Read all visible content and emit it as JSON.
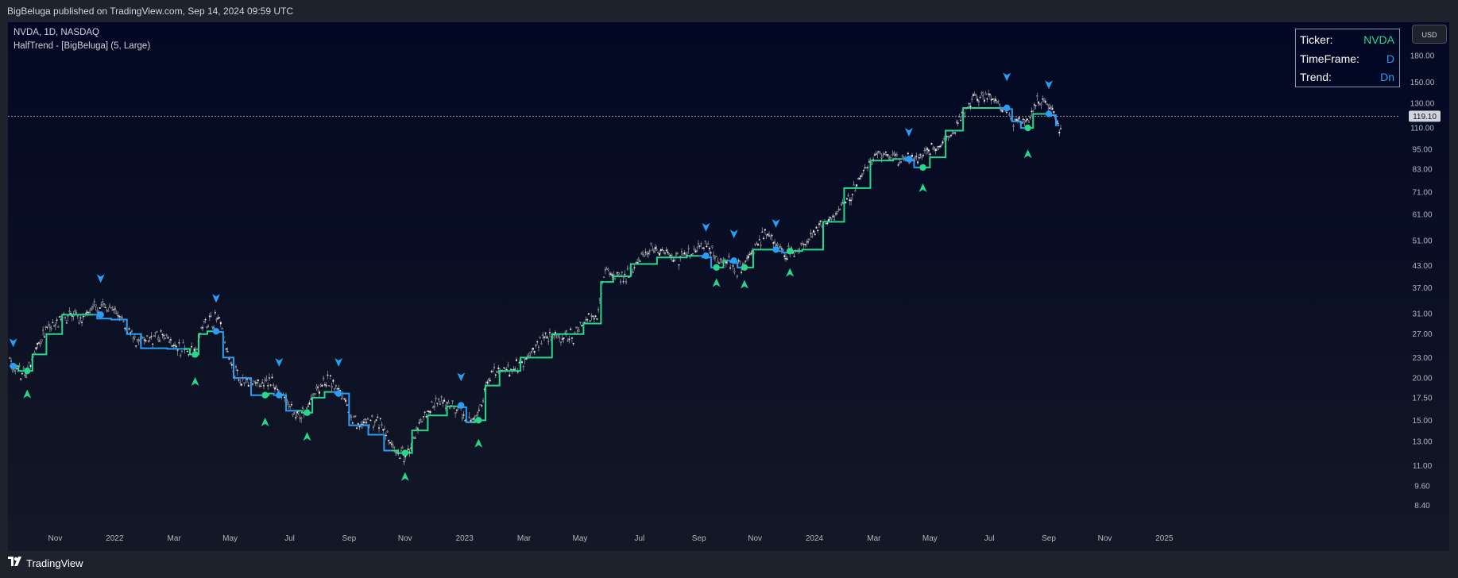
{
  "header": {
    "published_line": "BigBeluga published on TradingView.com, Sep 14, 2024 09:59 UTC"
  },
  "legend": {
    "symbol_line": "NVDA, 1D, NASDAQ",
    "indicator_line": "HalfTrend - [BigBeluga] (5, Large)"
  },
  "info_table": {
    "rows": [
      {
        "label": "Ticker:",
        "value": "NVDA",
        "color": "#26d88a"
      },
      {
        "label": "TimeFrame:",
        "value": "D",
        "color": "#2a9df4"
      },
      {
        "label": "Trend:",
        "value": "Dn",
        "color": "#2a9df4"
      }
    ]
  },
  "currency": "USD",
  "footer": {
    "brand": "TradingView"
  },
  "colors": {
    "up": "#26d88a",
    "down": "#2a9df4",
    "candle": "#c8c8c8",
    "axis_text": "#b2b5be",
    "price_line": "#9598a1"
  },
  "chart_data": {
    "type": "line",
    "scale": "log",
    "title": "NVDA, 1D, NASDAQ",
    "indicator": "HalfTrend - [BigBeluga] (5, Large)",
    "x_range": [
      "2021-10",
      "2025-02"
    ],
    "ylim": [
      7.6,
      205
    ],
    "x_ticks": [
      {
        "label": "Nov",
        "t": 2021.83
      },
      {
        "label": "2022",
        "t": 2022.0
      },
      {
        "label": "Mar",
        "t": 2022.17
      },
      {
        "label": "May",
        "t": 2022.33
      },
      {
        "label": "Jul",
        "t": 2022.5
      },
      {
        "label": "Sep",
        "t": 2022.67
      },
      {
        "label": "Nov",
        "t": 2022.83
      },
      {
        "label": "2023",
        "t": 2023.0
      },
      {
        "label": "Mar",
        "t": 2023.17
      },
      {
        "label": "May",
        "t": 2023.33
      },
      {
        "label": "Jul",
        "t": 2023.5
      },
      {
        "label": "Sep",
        "t": 2023.67
      },
      {
        "label": "Nov",
        "t": 2023.83
      },
      {
        "label": "2024",
        "t": 2024.0
      },
      {
        "label": "Mar",
        "t": 2024.17
      },
      {
        "label": "May",
        "t": 2024.33
      },
      {
        "label": "Jul",
        "t": 2024.5
      },
      {
        "label": "Sep",
        "t": 2024.67
      },
      {
        "label": "Nov",
        "t": 2024.83
      },
      {
        "label": "2025",
        "t": 2025.0
      }
    ],
    "y_ticks": [
      "180.00",
      "150.00",
      "130.00",
      "110.00",
      "95.00",
      "83.00",
      "71.00",
      "61.00",
      "51.00",
      "43.00",
      "37.00",
      "31.00",
      "27.00",
      "23.00",
      "20.00",
      "17.50",
      "15.00",
      "13.00",
      "11.00",
      "9.60",
      "8.40"
    ],
    "last_price": 119.1,
    "last_price_label": "119.10",
    "halftrend": [
      {
        "t": 2021.7,
        "v": 21.7,
        "trend": "down"
      },
      {
        "t": 2021.75,
        "v": 21.0,
        "trend": "up"
      },
      {
        "t": 2021.78,
        "v": 23.5,
        "trend": "up"
      },
      {
        "t": 2021.83,
        "v": 27.0,
        "trend": "up"
      },
      {
        "t": 2021.87,
        "v": 30.8,
        "trend": "up"
      },
      {
        "t": 2021.94,
        "v": 30.8,
        "trend": "up"
      },
      {
        "t": 2021.96,
        "v": 30.0,
        "trend": "down"
      },
      {
        "t": 2022.02,
        "v": 29.8,
        "trend": "down"
      },
      {
        "t": 2022.05,
        "v": 27.0,
        "trend": "down"
      },
      {
        "t": 2022.1,
        "v": 24.5,
        "trend": "down"
      },
      {
        "t": 2022.2,
        "v": 24.4,
        "trend": "down"
      },
      {
        "t": 2022.23,
        "v": 23.5,
        "trend": "up"
      },
      {
        "t": 2022.25,
        "v": 27.0,
        "trend": "up"
      },
      {
        "t": 2022.28,
        "v": 27.5,
        "trend": "up"
      },
      {
        "t": 2022.3,
        "v": 27.4,
        "trend": "down"
      },
      {
        "t": 2022.32,
        "v": 23.0,
        "trend": "down"
      },
      {
        "t": 2022.36,
        "v": 20.0,
        "trend": "down"
      },
      {
        "t": 2022.42,
        "v": 17.8,
        "trend": "down"
      },
      {
        "t": 2022.43,
        "v": 17.8,
        "trend": "up"
      },
      {
        "t": 2022.45,
        "v": 18.0,
        "trend": "up"
      },
      {
        "t": 2022.46,
        "v": 17.8,
        "trend": "down"
      },
      {
        "t": 2022.52,
        "v": 16.0,
        "trend": "down"
      },
      {
        "t": 2022.55,
        "v": 15.8,
        "trend": "up"
      },
      {
        "t": 2022.58,
        "v": 17.5,
        "trend": "up"
      },
      {
        "t": 2022.62,
        "v": 18.2,
        "trend": "up"
      },
      {
        "t": 2022.64,
        "v": 18.0,
        "trend": "down"
      },
      {
        "t": 2022.7,
        "v": 14.5,
        "trend": "down"
      },
      {
        "t": 2022.75,
        "v": 13.6,
        "trend": "down"
      },
      {
        "t": 2022.79,
        "v": 12.2,
        "trend": "down"
      },
      {
        "t": 2022.83,
        "v": 12.0,
        "trend": "up"
      },
      {
        "t": 2022.87,
        "v": 14.0,
        "trend": "up"
      },
      {
        "t": 2022.92,
        "v": 15.5,
        "trend": "up"
      },
      {
        "t": 2022.98,
        "v": 16.5,
        "trend": "up"
      },
      {
        "t": 2022.99,
        "v": 16.4,
        "trend": "down"
      },
      {
        "t": 2023.02,
        "v": 14.8,
        "trend": "down"
      },
      {
        "t": 2023.04,
        "v": 15.0,
        "trend": "up"
      },
      {
        "t": 2023.08,
        "v": 19.0,
        "trend": "up"
      },
      {
        "t": 2023.12,
        "v": 21.0,
        "trend": "up"
      },
      {
        "t": 2023.2,
        "v": 23.0,
        "trend": "up"
      },
      {
        "t": 2023.3,
        "v": 27.0,
        "trend": "up"
      },
      {
        "t": 2023.38,
        "v": 29.0,
        "trend": "up"
      },
      {
        "t": 2023.4,
        "v": 38.5,
        "trend": "up"
      },
      {
        "t": 2023.45,
        "v": 40.0,
        "trend": "up"
      },
      {
        "t": 2023.5,
        "v": 43.5,
        "trend": "up"
      },
      {
        "t": 2023.6,
        "v": 45.5,
        "trend": "up"
      },
      {
        "t": 2023.67,
        "v": 46.0,
        "trend": "up"
      },
      {
        "t": 2023.69,
        "v": 45.5,
        "trend": "down"
      },
      {
        "t": 2023.72,
        "v": 42.5,
        "trend": "down"
      },
      {
        "t": 2023.73,
        "v": 42.5,
        "trend": "up"
      },
      {
        "t": 2023.75,
        "v": 44.5,
        "trend": "up"
      },
      {
        "t": 2023.77,
        "v": 44.0,
        "trend": "down"
      },
      {
        "t": 2023.79,
        "v": 42.5,
        "trend": "down"
      },
      {
        "t": 2023.8,
        "v": 42.5,
        "trend": "up"
      },
      {
        "t": 2023.85,
        "v": 48.0,
        "trend": "up"
      },
      {
        "t": 2023.89,
        "v": 48.0,
        "trend": "up"
      },
      {
        "t": 2023.9,
        "v": 47.5,
        "trend": "down"
      },
      {
        "t": 2023.92,
        "v": 47.0,
        "trend": "down"
      },
      {
        "t": 2023.93,
        "v": 47.5,
        "trend": "up"
      },
      {
        "t": 2024.0,
        "v": 48.0,
        "trend": "up"
      },
      {
        "t": 2024.05,
        "v": 58.0,
        "trend": "up"
      },
      {
        "t": 2024.12,
        "v": 73.0,
        "trend": "up"
      },
      {
        "t": 2024.2,
        "v": 88.0,
        "trend": "up"
      },
      {
        "t": 2024.25,
        "v": 89.0,
        "trend": "up"
      },
      {
        "t": 2024.27,
        "v": 88.0,
        "trend": "down"
      },
      {
        "t": 2024.3,
        "v": 84.0,
        "trend": "down"
      },
      {
        "t": 2024.31,
        "v": 84.0,
        "trend": "up"
      },
      {
        "t": 2024.35,
        "v": 90.0,
        "trend": "up"
      },
      {
        "t": 2024.4,
        "v": 108.0,
        "trend": "up"
      },
      {
        "t": 2024.45,
        "v": 126.0,
        "trend": "up"
      },
      {
        "t": 2024.53,
        "v": 126.0,
        "trend": "up"
      },
      {
        "t": 2024.55,
        "v": 125.0,
        "trend": "down"
      },
      {
        "t": 2024.58,
        "v": 115.0,
        "trend": "down"
      },
      {
        "t": 2024.6,
        "v": 110.0,
        "trend": "down"
      },
      {
        "t": 2024.61,
        "v": 110.0,
        "trend": "up"
      },
      {
        "t": 2024.64,
        "v": 121.0,
        "trend": "up"
      },
      {
        "t": 2024.67,
        "v": 121.0,
        "trend": "up"
      },
      {
        "t": 2024.68,
        "v": 120.0,
        "trend": "down"
      },
      {
        "t": 2024.7,
        "v": 112.0,
        "trend": "down"
      }
    ],
    "markers": [
      {
        "t": 2021.71,
        "v": 21.7,
        "dir": "down"
      },
      {
        "t": 2021.75,
        "v": 21.0,
        "dir": "up"
      },
      {
        "t": 2021.96,
        "v": 30.8,
        "dir": "down"
      },
      {
        "t": 2022.23,
        "v": 23.5,
        "dir": "up"
      },
      {
        "t": 2022.29,
        "v": 27.5,
        "dir": "down"
      },
      {
        "t": 2022.43,
        "v": 17.8,
        "dir": "up"
      },
      {
        "t": 2022.47,
        "v": 17.8,
        "dir": "down"
      },
      {
        "t": 2022.55,
        "v": 15.8,
        "dir": "up"
      },
      {
        "t": 2022.64,
        "v": 18.0,
        "dir": "down"
      },
      {
        "t": 2022.83,
        "v": 12.0,
        "dir": "up"
      },
      {
        "t": 2022.99,
        "v": 16.6,
        "dir": "down"
      },
      {
        "t": 2023.04,
        "v": 15.0,
        "dir": "up"
      },
      {
        "t": 2023.69,
        "v": 46.0,
        "dir": "down"
      },
      {
        "t": 2023.72,
        "v": 42.5,
        "dir": "up"
      },
      {
        "t": 2023.77,
        "v": 44.5,
        "dir": "down"
      },
      {
        "t": 2023.8,
        "v": 42.5,
        "dir": "up"
      },
      {
        "t": 2023.89,
        "v": 48.0,
        "dir": "down"
      },
      {
        "t": 2023.93,
        "v": 47.5,
        "dir": "up"
      },
      {
        "t": 2024.27,
        "v": 89.0,
        "dir": "down"
      },
      {
        "t": 2024.31,
        "v": 84.0,
        "dir": "up"
      },
      {
        "t": 2024.55,
        "v": 126.0,
        "dir": "down"
      },
      {
        "t": 2024.61,
        "v": 110.0,
        "dir": "up"
      },
      {
        "t": 2024.67,
        "v": 121.0,
        "dir": "down"
      }
    ],
    "arrows": [
      {
        "t": 2021.71,
        "v": 25.5,
        "dir": "down"
      },
      {
        "t": 2021.75,
        "v": 17.9,
        "dir": "up"
      },
      {
        "t": 2021.96,
        "v": 39.5,
        "dir": "down"
      },
      {
        "t": 2022.23,
        "v": 19.5,
        "dir": "up"
      },
      {
        "t": 2022.29,
        "v": 34.5,
        "dir": "down"
      },
      {
        "t": 2022.43,
        "v": 14.8,
        "dir": "up"
      },
      {
        "t": 2022.47,
        "v": 22.3,
        "dir": "down"
      },
      {
        "t": 2022.55,
        "v": 13.4,
        "dir": "up"
      },
      {
        "t": 2022.64,
        "v": 22.3,
        "dir": "down"
      },
      {
        "t": 2022.83,
        "v": 10.2,
        "dir": "up"
      },
      {
        "t": 2022.99,
        "v": 20.2,
        "dir": "down"
      },
      {
        "t": 2023.04,
        "v": 12.8,
        "dir": "up"
      },
      {
        "t": 2023.69,
        "v": 56.0,
        "dir": "down"
      },
      {
        "t": 2023.72,
        "v": 38.2,
        "dir": "up"
      },
      {
        "t": 2023.77,
        "v": 53.5,
        "dir": "down"
      },
      {
        "t": 2023.8,
        "v": 37.8,
        "dir": "up"
      },
      {
        "t": 2023.89,
        "v": 57.5,
        "dir": "down"
      },
      {
        "t": 2023.93,
        "v": 41.0,
        "dir": "up"
      },
      {
        "t": 2024.27,
        "v": 107.0,
        "dir": "down"
      },
      {
        "t": 2024.31,
        "v": 73.0,
        "dir": "up"
      },
      {
        "t": 2024.55,
        "v": 156.0,
        "dir": "down"
      },
      {
        "t": 2024.61,
        "v": 92.0,
        "dir": "up"
      },
      {
        "t": 2024.67,
        "v": 148.0,
        "dir": "down"
      }
    ]
  }
}
